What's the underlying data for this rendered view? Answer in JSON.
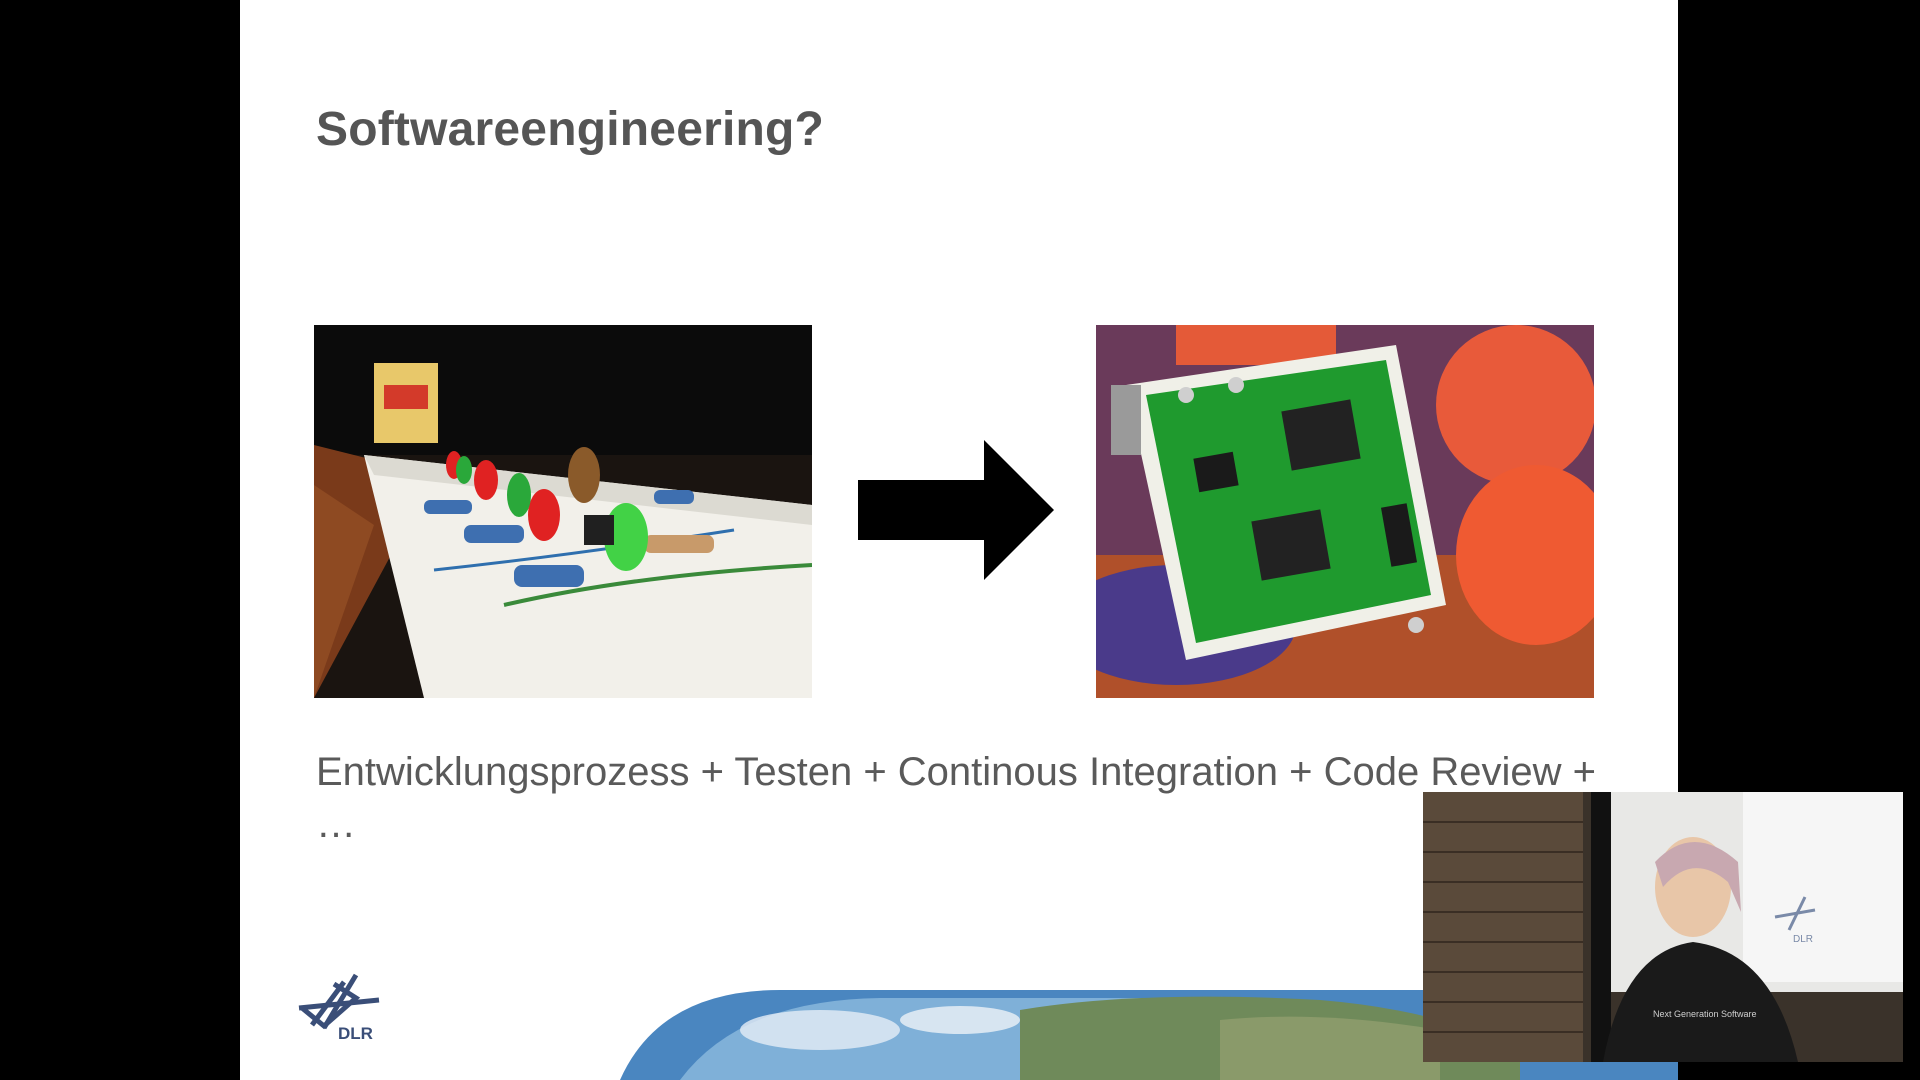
{
  "slide": {
    "title": "Softwareengineering?",
    "caption_line1": "Entwicklungsprozess + Testen + Continous Integration + Code Review +",
    "caption_line2": "…",
    "logo": {
      "text": "DLR",
      "icon": "dlr-logo-icon"
    },
    "images": [
      {
        "name": "breadboard-photo",
        "icon": "breadboard-image"
      },
      {
        "name": "circuit-board-photo",
        "icon": "pcb-image"
      }
    ],
    "arrow_icon": "right-arrow-icon",
    "banner_icon": "earth-image"
  },
  "speaker_overlay": {
    "icon": "presenter-video",
    "shirt_text": "Next Generation Software",
    "screen_logo_text": "DLR"
  },
  "colors": {
    "background": "#000000",
    "slide": "#ffffff",
    "title": "#555555",
    "caption": "#5a5a5a",
    "arrow": "#000000",
    "logo": "#3a4e78"
  }
}
